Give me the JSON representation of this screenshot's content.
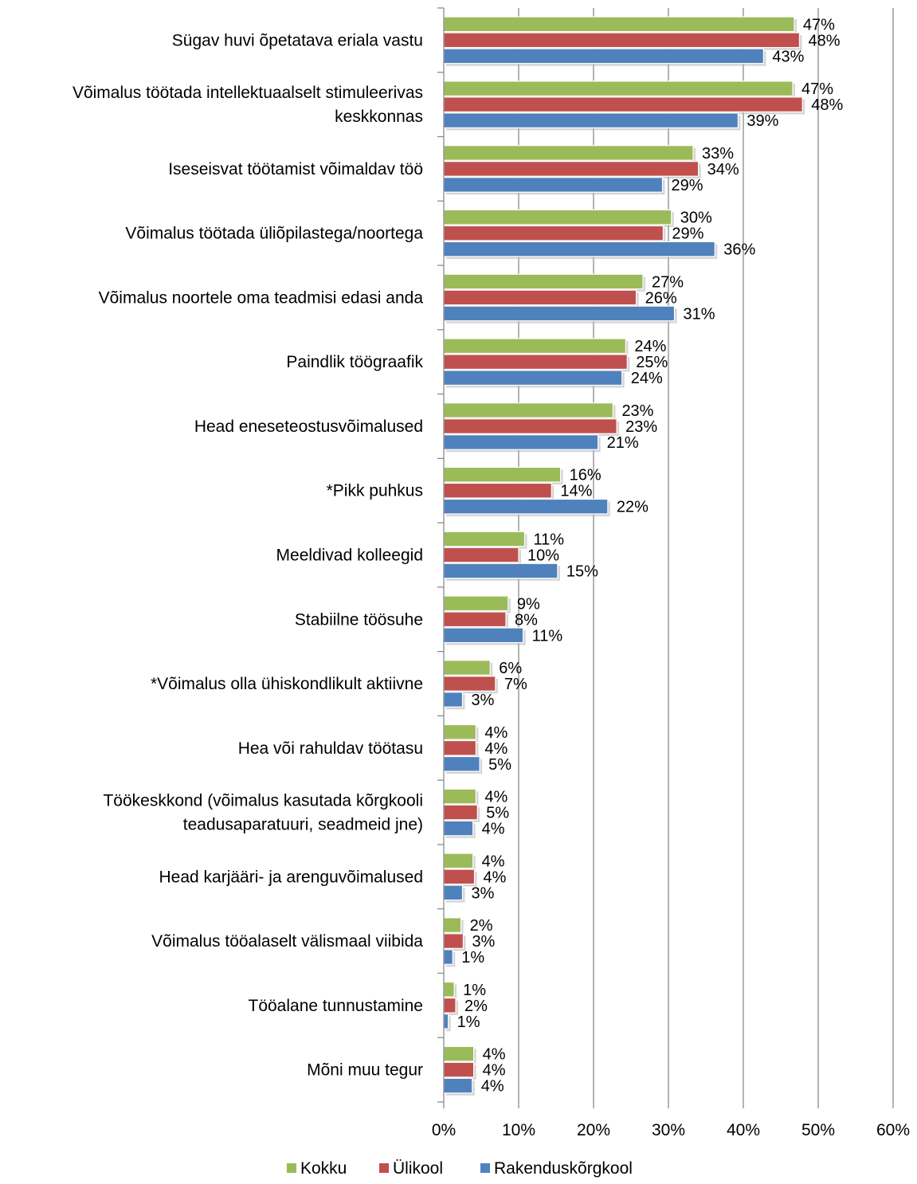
{
  "chart_data": {
    "type": "bar",
    "orientation": "horizontal",
    "title": "",
    "xlabel": "",
    "ylabel": "",
    "xlim": [
      0,
      60
    ],
    "x_ticks": [
      "0%",
      "10%",
      "20%",
      "30%",
      "40%",
      "50%",
      "60%"
    ],
    "value_suffix": "%",
    "grid": "vertical major gridlines",
    "legend_position": "bottom",
    "categories": [
      [
        "Sügav huvi õpetatava eriala vastu"
      ],
      [
        "Võimalus töötada intellektuaalselt stimuleerivas",
        "keskkonnas"
      ],
      [
        "Iseseisvat töötamist võimaldav töö"
      ],
      [
        "Võimalus töötada üliõpilastega/noortega"
      ],
      [
        "Võimalus noortele oma teadmisi edasi anda"
      ],
      [
        "Paindlik töögraafik"
      ],
      [
        "Head eneseteostusvõimalused"
      ],
      [
        "*Pikk puhkus"
      ],
      [
        "Meeldivad kolleegid"
      ],
      [
        "Stabiilne töösuhe"
      ],
      [
        "*Võimalus olla ühiskondlikult aktiivne"
      ],
      [
        "Hea või rahuldav töötasu"
      ],
      [
        "Töökeskkond (võimalus kasutada kõrgkooli",
        "teadusaparatuuri, seadmeid jne)"
      ],
      [
        "Head karjääri- ja arenguvõimalused"
      ],
      [
        "Võimalus tööalaselt välismaal viibida"
      ],
      [
        "Tööalane tunnustamine"
      ],
      [
        "Mõni muu tegur"
      ]
    ],
    "series": [
      {
        "name": "Kokku",
        "color": "#9bbb59",
        "values": [
          46.8,
          46.6,
          33.3,
          30.4,
          26.6,
          24.3,
          22.6,
          15.6,
          10.8,
          8.6,
          6.2,
          4.3,
          4.3,
          3.9,
          2.3,
          1.4,
          4.0
        ],
        "labels": [
          "47%",
          "47%",
          "33%",
          "30%",
          "27%",
          "24%",
          "23%",
          "16%",
          "11%",
          "9%",
          "6%",
          "4%",
          "4%",
          "4%",
          "2%",
          "1%",
          "4%"
        ]
      },
      {
        "name": "Ülikool",
        "color": "#c0504d",
        "values": [
          47.5,
          47.9,
          34.0,
          29.3,
          25.7,
          24.5,
          23.1,
          14.4,
          10.0,
          8.3,
          6.9,
          4.3,
          4.5,
          4.1,
          2.6,
          1.6,
          4.0
        ],
        "labels": [
          "48%",
          "48%",
          "34%",
          "29%",
          "26%",
          "25%",
          "23%",
          "14%",
          "10%",
          "8%",
          "7%",
          "4%",
          "5%",
          "4%",
          "3%",
          "2%",
          "4%"
        ]
      },
      {
        "name": "Rakenduskõrgkool",
        "color": "#4f81bd",
        "values": [
          42.7,
          39.3,
          29.2,
          36.2,
          30.8,
          23.8,
          20.6,
          21.9,
          15.2,
          10.6,
          2.5,
          4.8,
          3.9,
          2.5,
          1.2,
          0.6,
          3.8
        ],
        "labels": [
          "43%",
          "39%",
          "29%",
          "36%",
          "31%",
          "24%",
          "21%",
          "22%",
          "15%",
          "11%",
          "3%",
          "5%",
          "4%",
          "3%",
          "1%",
          "1%",
          "4%"
        ]
      }
    ]
  }
}
